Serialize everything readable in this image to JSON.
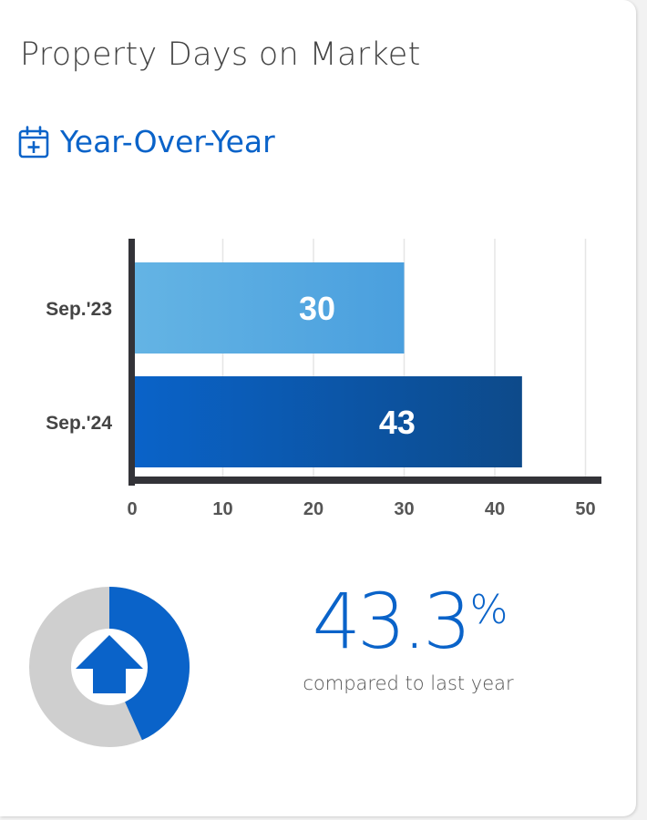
{
  "header": {
    "title": "Property Days on Market",
    "subtitle": "Year-Over-Year",
    "subtitle_icon": "calendar-plus-icon"
  },
  "colors": {
    "accent": "#0a63c9",
    "bar_2023_start": "#64b4e4",
    "bar_2023_end": "#4a9fde",
    "bar_2024_start": "#0a63c9",
    "bar_2024_end": "#0d4a8a",
    "axis": "#333338",
    "donut_rest": "#cfcfcf"
  },
  "chart_data": {
    "type": "bar",
    "orientation": "horizontal",
    "categories": [
      "Sep.'23",
      "Sep.'24"
    ],
    "values": [
      30,
      43
    ],
    "data_labels": [
      "30",
      "43"
    ],
    "xlim": [
      0,
      52
    ],
    "xticks": [
      "0",
      "10",
      "20",
      "30",
      "40",
      "50"
    ],
    "xtick_values": [
      0,
      10,
      20,
      30,
      40,
      50
    ],
    "grid": true
  },
  "summary": {
    "percent_value": "43.3",
    "percent_sign": "%",
    "caption": "compared to last year",
    "direction_icon": "arrow-up-icon",
    "donut_fraction": 0.433
  }
}
